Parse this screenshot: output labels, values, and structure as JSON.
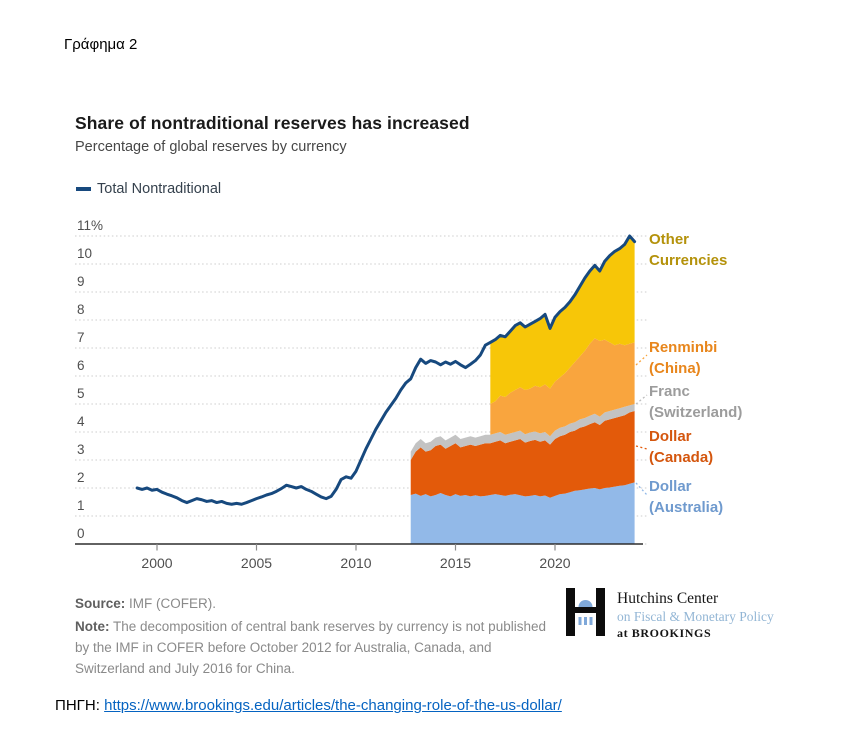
{
  "page": {
    "figure_label": "Γράφημα 2",
    "source_label": "ΠΗΓΗ:",
    "source_url": "https://www.brookings.edu/articles/the-changing-role-of-the-us-dollar/"
  },
  "chart": {
    "title": "Share of nontraditional reserves has increased",
    "subtitle": "Percentage of global reserves by currency",
    "legend_label": "Total Nontraditional",
    "source_prefix": "Source:",
    "source_text": " IMF (COFER).",
    "note_prefix": "Note:",
    "note_text": " The decomposition of central bank reserves by currency is not published by the IMF in COFER before October 2012 for Australia, Canada, and Switzerland and July 2016 for China."
  },
  "logo": {
    "line1": "Hutchins Center",
    "line2": "on Fiscal & Monetary Policy",
    "line3": "at BROOKINGS"
  },
  "chart_data": {
    "type": "line+stacked-area",
    "title": "Share of nontraditional reserves has increased",
    "subtitle": "Percentage of global reserves by currency",
    "grid": "horizontal-dotted",
    "x_axis": {
      "ticks": [
        2000,
        2005,
        2010,
        2015,
        2020
      ],
      "min": 1999,
      "max": 2024
    },
    "y_axis": {
      "min": 0,
      "max": 11,
      "step": 1,
      "top_tick_label": "11%",
      "unit": "percent of global reserves"
    },
    "line_series": {
      "name": "Total Nontraditional",
      "color": "#17497e",
      "points": [
        [
          1999,
          2.0
        ],
        [
          1999.25,
          1.95
        ],
        [
          1999.5,
          2.0
        ],
        [
          1999.75,
          1.92
        ],
        [
          2000,
          1.95
        ],
        [
          2000.25,
          1.85
        ],
        [
          2000.5,
          1.78
        ],
        [
          2000.75,
          1.72
        ],
        [
          2001,
          1.65
        ],
        [
          2001.25,
          1.55
        ],
        [
          2001.5,
          1.48
        ],
        [
          2001.75,
          1.55
        ],
        [
          2002,
          1.62
        ],
        [
          2002.25,
          1.58
        ],
        [
          2002.5,
          1.52
        ],
        [
          2002.75,
          1.55
        ],
        [
          2003,
          1.48
        ],
        [
          2003.25,
          1.52
        ],
        [
          2003.5,
          1.45
        ],
        [
          2003.75,
          1.42
        ],
        [
          2004,
          1.45
        ],
        [
          2004.25,
          1.42
        ],
        [
          2004.5,
          1.48
        ],
        [
          2004.75,
          1.55
        ],
        [
          2005,
          1.62
        ],
        [
          2005.25,
          1.68
        ],
        [
          2005.5,
          1.75
        ],
        [
          2005.75,
          1.8
        ],
        [
          2006,
          1.88
        ],
        [
          2006.25,
          1.98
        ],
        [
          2006.5,
          2.1
        ],
        [
          2006.75,
          2.05
        ],
        [
          2007,
          2.0
        ],
        [
          2007.25,
          2.05
        ],
        [
          2007.5,
          1.95
        ],
        [
          2007.75,
          1.88
        ],
        [
          2008,
          1.78
        ],
        [
          2008.25,
          1.68
        ],
        [
          2008.5,
          1.62
        ],
        [
          2008.75,
          1.7
        ],
        [
          2009,
          1.95
        ],
        [
          2009.25,
          2.3
        ],
        [
          2009.5,
          2.4
        ],
        [
          2009.75,
          2.35
        ],
        [
          2010,
          2.6
        ],
        [
          2010.25,
          3.0
        ],
        [
          2010.5,
          3.4
        ],
        [
          2010.75,
          3.75
        ],
        [
          2011,
          4.1
        ],
        [
          2011.25,
          4.4
        ],
        [
          2011.5,
          4.7
        ],
        [
          2011.75,
          4.95
        ],
        [
          2012,
          5.2
        ],
        [
          2012.25,
          5.5
        ],
        [
          2012.5,
          5.75
        ],
        [
          2012.75,
          5.9
        ],
        [
          2013,
          6.3
        ],
        [
          2013.25,
          6.6
        ],
        [
          2013.5,
          6.45
        ],
        [
          2013.75,
          6.55
        ],
        [
          2014,
          6.5
        ],
        [
          2014.25,
          6.4
        ],
        [
          2014.5,
          6.5
        ],
        [
          2014.75,
          6.42
        ],
        [
          2015,
          6.52
        ],
        [
          2015.25,
          6.4
        ],
        [
          2015.5,
          6.3
        ],
        [
          2015.75,
          6.42
        ],
        [
          2016,
          6.55
        ],
        [
          2016.25,
          6.75
        ],
        [
          2016.5,
          7.1
        ],
        [
          2016.75,
          7.2
        ],
        [
          2017,
          7.3
        ],
        [
          2017.25,
          7.45
        ],
        [
          2017.5,
          7.4
        ],
        [
          2017.75,
          7.6
        ],
        [
          2018,
          7.8
        ],
        [
          2018.25,
          7.9
        ],
        [
          2018.5,
          7.75
        ],
        [
          2018.75,
          7.85
        ],
        [
          2019,
          7.95
        ],
        [
          2019.25,
          8.05
        ],
        [
          2019.5,
          8.2
        ],
        [
          2019.75,
          7.7
        ],
        [
          2020,
          8.1
        ],
        [
          2020.25,
          8.3
        ],
        [
          2020.5,
          8.45
        ],
        [
          2020.75,
          8.65
        ],
        [
          2021,
          8.9
        ],
        [
          2021.25,
          9.2
        ],
        [
          2021.5,
          9.5
        ],
        [
          2021.75,
          9.75
        ],
        [
          2022,
          9.95
        ],
        [
          2022.25,
          9.75
        ],
        [
          2022.5,
          10.1
        ],
        [
          2022.75,
          10.3
        ],
        [
          2023,
          10.45
        ],
        [
          2023.25,
          10.55
        ],
        [
          2023.5,
          10.7
        ],
        [
          2023.75,
          11.0
        ],
        [
          2024,
          10.8
        ]
      ]
    },
    "stacked_series": [
      {
        "name": "Dollar (Australia)",
        "area_color": "#92b9e8",
        "label_color": "#6f9ace",
        "values_are": "cumulative-top",
        "points": [
          [
            2012.75,
            1.75
          ],
          [
            2013,
            1.8
          ],
          [
            2013.25,
            1.72
          ],
          [
            2013.5,
            1.78
          ],
          [
            2013.75,
            1.7
          ],
          [
            2014,
            1.75
          ],
          [
            2014.25,
            1.82
          ],
          [
            2014.5,
            1.75
          ],
          [
            2014.75,
            1.7
          ],
          [
            2015,
            1.78
          ],
          [
            2015.25,
            1.72
          ],
          [
            2015.5,
            1.75
          ],
          [
            2015.75,
            1.7
          ],
          [
            2016,
            1.74
          ],
          [
            2016.25,
            1.7
          ],
          [
            2016.5,
            1.72
          ],
          [
            2016.75,
            1.75
          ],
          [
            2017,
            1.78
          ],
          [
            2017.25,
            1.75
          ],
          [
            2017.5,
            1.72
          ],
          [
            2017.75,
            1.76
          ],
          [
            2018,
            1.78
          ],
          [
            2018.25,
            1.74
          ],
          [
            2018.5,
            1.7
          ],
          [
            2018.75,
            1.72
          ],
          [
            2019,
            1.75
          ],
          [
            2019.25,
            1.7
          ],
          [
            2019.5,
            1.73
          ],
          [
            2019.75,
            1.65
          ],
          [
            2020,
            1.72
          ],
          [
            2020.25,
            1.78
          ],
          [
            2020.5,
            1.8
          ],
          [
            2020.75,
            1.85
          ],
          [
            2021,
            1.9
          ],
          [
            2021.25,
            1.92
          ],
          [
            2021.5,
            1.95
          ],
          [
            2021.75,
            1.98
          ],
          [
            2022,
            2.0
          ],
          [
            2022.25,
            1.95
          ],
          [
            2022.5,
            2.0
          ],
          [
            2022.75,
            2.02
          ],
          [
            2023,
            2.05
          ],
          [
            2023.25,
            2.08
          ],
          [
            2023.5,
            2.1
          ],
          [
            2023.75,
            2.15
          ],
          [
            2024,
            2.2
          ]
        ]
      },
      {
        "name": "Dollar (Canada)",
        "area_color": "#e35a0a",
        "label_color": "#d4560e",
        "values_are": "cumulative-top",
        "points": [
          [
            2012.75,
            3.0
          ],
          [
            2013,
            3.3
          ],
          [
            2013.25,
            3.45
          ],
          [
            2013.5,
            3.3
          ],
          [
            2013.75,
            3.35
          ],
          [
            2014,
            3.5
          ],
          [
            2014.25,
            3.55
          ],
          [
            2014.5,
            3.4
          ],
          [
            2014.75,
            3.5
          ],
          [
            2015,
            3.6
          ],
          [
            2015.25,
            3.45
          ],
          [
            2015.5,
            3.5
          ],
          [
            2015.75,
            3.55
          ],
          [
            2016,
            3.5
          ],
          [
            2016.25,
            3.55
          ],
          [
            2016.5,
            3.6
          ],
          [
            2016.75,
            3.6
          ],
          [
            2017,
            3.65
          ],
          [
            2017.25,
            3.7
          ],
          [
            2017.5,
            3.6
          ],
          [
            2017.75,
            3.65
          ],
          [
            2018,
            3.7
          ],
          [
            2018.25,
            3.75
          ],
          [
            2018.5,
            3.62
          ],
          [
            2018.75,
            3.68
          ],
          [
            2019,
            3.72
          ],
          [
            2019.25,
            3.65
          ],
          [
            2019.5,
            3.7
          ],
          [
            2019.75,
            3.55
          ],
          [
            2020,
            3.75
          ],
          [
            2020.25,
            3.85
          ],
          [
            2020.5,
            3.9
          ],
          [
            2020.75,
            4.0
          ],
          [
            2021,
            4.05
          ],
          [
            2021.25,
            4.15
          ],
          [
            2021.5,
            4.2
          ],
          [
            2021.75,
            4.28
          ],
          [
            2022,
            4.35
          ],
          [
            2022.25,
            4.25
          ],
          [
            2022.5,
            4.4
          ],
          [
            2022.75,
            4.45
          ],
          [
            2023,
            4.5
          ],
          [
            2023.25,
            4.55
          ],
          [
            2023.5,
            4.6
          ],
          [
            2023.75,
            4.7
          ],
          [
            2024,
            4.75
          ]
        ]
      },
      {
        "name": "Franc (Switzerland)",
        "area_color": "#c3c3c3",
        "label_color": "#9c9c9c",
        "values_are": "cumulative-top",
        "points": [
          [
            2012.75,
            3.3
          ],
          [
            2013,
            3.6
          ],
          [
            2013.25,
            3.75
          ],
          [
            2013.5,
            3.6
          ],
          [
            2013.75,
            3.65
          ],
          [
            2014,
            3.8
          ],
          [
            2014.25,
            3.85
          ],
          [
            2014.5,
            3.7
          ],
          [
            2014.75,
            3.8
          ],
          [
            2015,
            3.9
          ],
          [
            2015.25,
            3.75
          ],
          [
            2015.5,
            3.8
          ],
          [
            2015.75,
            3.85
          ],
          [
            2016,
            3.8
          ],
          [
            2016.25,
            3.85
          ],
          [
            2016.5,
            3.9
          ],
          [
            2016.75,
            3.9
          ],
          [
            2017,
            3.95
          ],
          [
            2017.25,
            4.0
          ],
          [
            2017.5,
            3.9
          ],
          [
            2017.75,
            3.95
          ],
          [
            2018,
            4.0
          ],
          [
            2018.25,
            4.05
          ],
          [
            2018.5,
            3.92
          ],
          [
            2018.75,
            3.98
          ],
          [
            2019,
            4.02
          ],
          [
            2019.25,
            3.95
          ],
          [
            2019.5,
            4.0
          ],
          [
            2019.75,
            3.85
          ],
          [
            2020,
            4.05
          ],
          [
            2020.25,
            4.15
          ],
          [
            2020.5,
            4.2
          ],
          [
            2020.75,
            4.3
          ],
          [
            2021,
            4.35
          ],
          [
            2021.25,
            4.45
          ],
          [
            2021.5,
            4.5
          ],
          [
            2021.75,
            4.58
          ],
          [
            2022,
            4.65
          ],
          [
            2022.25,
            4.55
          ],
          [
            2022.5,
            4.7
          ],
          [
            2022.75,
            4.75
          ],
          [
            2023,
            4.8
          ],
          [
            2023.25,
            4.85
          ],
          [
            2023.5,
            4.9
          ],
          [
            2023.75,
            4.95
          ],
          [
            2024,
            5.0
          ]
        ]
      },
      {
        "name": "Renminbi (China)",
        "area_color": "#f9a53e",
        "label_color": "#e8861c",
        "values_are": "cumulative-top",
        "points": [
          [
            2016.75,
            5.0
          ],
          [
            2017,
            5.1
          ],
          [
            2017.25,
            5.3
          ],
          [
            2017.5,
            5.25
          ],
          [
            2017.75,
            5.4
          ],
          [
            2018,
            5.5
          ],
          [
            2018.25,
            5.6
          ],
          [
            2018.5,
            5.5
          ],
          [
            2018.75,
            5.55
          ],
          [
            2019,
            5.65
          ],
          [
            2019.25,
            5.6
          ],
          [
            2019.5,
            5.7
          ],
          [
            2019.75,
            5.55
          ],
          [
            2020,
            5.8
          ],
          [
            2020.25,
            5.95
          ],
          [
            2020.5,
            6.1
          ],
          [
            2020.75,
            6.3
          ],
          [
            2021,
            6.5
          ],
          [
            2021.25,
            6.7
          ],
          [
            2021.5,
            6.9
          ],
          [
            2021.75,
            7.15
          ],
          [
            2022,
            7.35
          ],
          [
            2022.25,
            7.25
          ],
          [
            2022.5,
            7.3
          ],
          [
            2022.75,
            7.2
          ],
          [
            2023,
            7.1
          ],
          [
            2023.25,
            7.15
          ],
          [
            2023.5,
            7.1
          ],
          [
            2023.75,
            7.15
          ],
          [
            2024,
            7.2
          ]
        ]
      },
      {
        "name": "Other Currencies",
        "area_color": "#f7c608",
        "label_color": "#b4920b",
        "values_are": "cumulative-top",
        "points": [
          [
            2016.75,
            7.2
          ],
          [
            2017,
            7.3
          ],
          [
            2017.25,
            7.45
          ],
          [
            2017.5,
            7.4
          ],
          [
            2017.75,
            7.6
          ],
          [
            2018,
            7.8
          ],
          [
            2018.25,
            7.9
          ],
          [
            2018.5,
            7.75
          ],
          [
            2018.75,
            7.85
          ],
          [
            2019,
            7.95
          ],
          [
            2019.25,
            8.05
          ],
          [
            2019.5,
            8.2
          ],
          [
            2019.75,
            7.7
          ],
          [
            2020,
            8.1
          ],
          [
            2020.25,
            8.3
          ],
          [
            2020.5,
            8.45
          ],
          [
            2020.75,
            8.65
          ],
          [
            2021,
            8.9
          ],
          [
            2021.25,
            9.2
          ],
          [
            2021.5,
            9.5
          ],
          [
            2021.75,
            9.75
          ],
          [
            2022,
            9.95
          ],
          [
            2022.25,
            9.75
          ],
          [
            2022.5,
            10.1
          ],
          [
            2022.75,
            10.3
          ],
          [
            2023,
            10.45
          ],
          [
            2023.25,
            10.55
          ],
          [
            2023.5,
            10.7
          ],
          [
            2023.75,
            11.0
          ],
          [
            2024,
            10.8
          ]
        ]
      }
    ]
  }
}
